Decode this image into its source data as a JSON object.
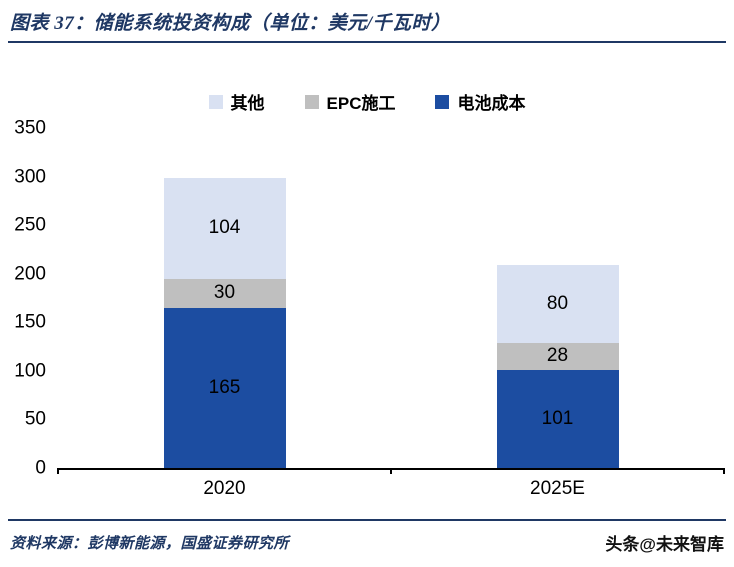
{
  "header": {
    "title": "图表 37：储能系统投资构成（单位：美元/千瓦时）"
  },
  "chart_data": {
    "type": "bar",
    "stacked": true,
    "title": "储能系统投资构成",
    "unit": "美元/千瓦时",
    "categories": [
      "2020",
      "2025E"
    ],
    "series": [
      {
        "name": "电池成本",
        "color": "#1C4DA1",
        "values": [
          165,
          101
        ]
      },
      {
        "name": "EPC施工",
        "color": "#BFBFBF",
        "values": [
          30,
          28
        ]
      },
      {
        "name": "其他",
        "color": "#D9E1F2",
        "values": [
          104,
          80
        ]
      }
    ],
    "legend": [
      {
        "label": "其他",
        "color": "#D9E1F2"
      },
      {
        "label": "EPC施工",
        "color": "#BFBFBF"
      },
      {
        "label": "电池成本",
        "color": "#1C4DA1"
      }
    ],
    "ylim": [
      0,
      350
    ],
    "ytick_step": 50,
    "legend_position": "top",
    "grid": false
  },
  "footer": {
    "source": "资料来源：彭博新能源，国盛证券研究所",
    "watermark": "头条@未来智库"
  },
  "colors": {
    "accent_navy": "#1F3864",
    "axis": "#000000"
  }
}
